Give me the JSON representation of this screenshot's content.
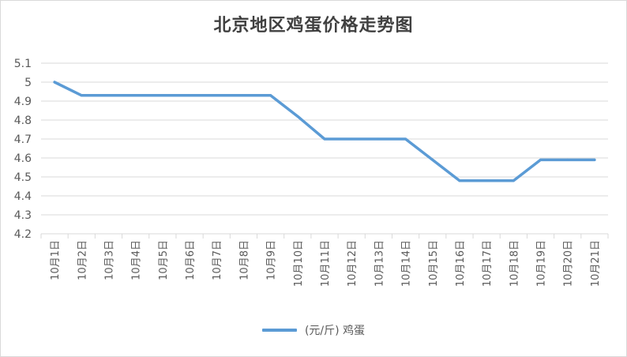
{
  "chart_data": {
    "type": "line",
    "title": "北京地区鸡蛋价格走势图",
    "categories": [
      "10月1日",
      "10月2日",
      "10月3日",
      "10月4日",
      "10月5日",
      "10月6日",
      "10月7日",
      "10月8日",
      "10月9日",
      "10月10日",
      "10月11日",
      "10月12日",
      "10月13日",
      "10月14日",
      "10月15日",
      "10月16日",
      "10月17日",
      "10月18日",
      "10月19日",
      "10月20日",
      "10月21日"
    ],
    "series": [
      {
        "name": "(元/斤) 鸡蛋",
        "color": "#5b9bd5",
        "values": [
          5.0,
          4.93,
          4.93,
          4.93,
          4.93,
          4.93,
          4.93,
          4.93,
          4.93,
          4.82,
          4.7,
          4.7,
          4.7,
          4.7,
          4.59,
          4.48,
          4.48,
          4.48,
          4.59,
          4.59,
          4.59
        ]
      }
    ],
    "ylim": [
      4.2,
      5.1
    ],
    "yticks": [
      "4.2",
      "4.3",
      "4.4",
      "4.5",
      "4.6",
      "4.7",
      "4.8",
      "4.9",
      "5",
      "5.1"
    ],
    "grid": true,
    "legend": "bottom"
  }
}
